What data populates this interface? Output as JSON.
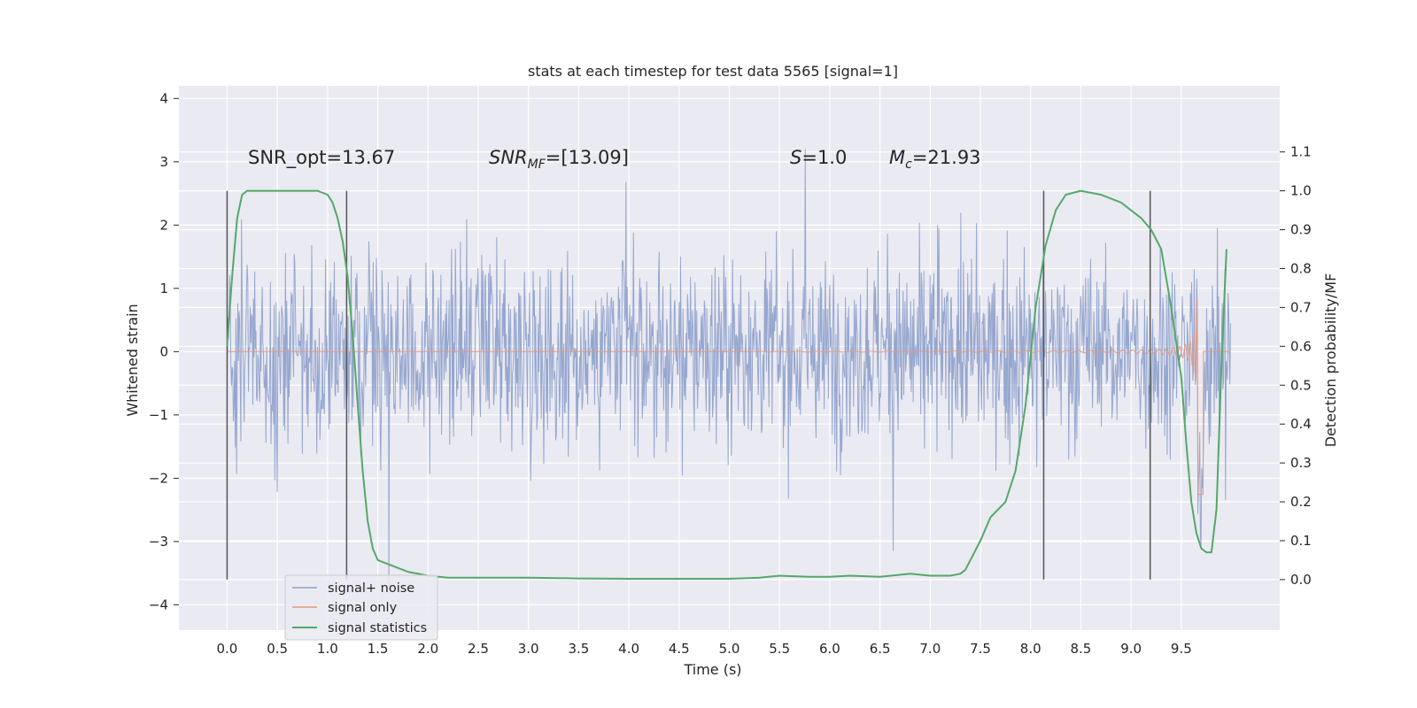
{
  "chart_data": {
    "type": "line",
    "title": "stats at each timestep for test data 5565 [signal=1]",
    "xlabel": "Time (s)",
    "ylabel": "Whitened strain",
    "y2label": "Detection probability/MF",
    "xlim": [
      -0.48,
      10.48
    ],
    "ylim": [
      -4.4,
      4.2
    ],
    "y2lim": [
      -0.13,
      1.27
    ],
    "xticks": [
      "0.0",
      "0.5",
      "1.0",
      "1.5",
      "2.0",
      "2.5",
      "3.0",
      "3.5",
      "4.0",
      "4.5",
      "5.0",
      "5.5",
      "6.0",
      "6.5",
      "7.0",
      "7.5",
      "8.0",
      "8.5",
      "9.0",
      "9.5"
    ],
    "yticks": [
      "4",
      "3",
      "2",
      "1",
      "0",
      "−1",
      "−2",
      "−3",
      "−4"
    ],
    "y2ticks": [
      "0.0",
      "0.1",
      "0.2",
      "0.3",
      "0.4",
      "0.5",
      "0.6",
      "0.7",
      "0.8",
      "0.9",
      "1.0",
      "1.1"
    ],
    "grid": true,
    "legend": {
      "position": "lower-left",
      "entries": [
        {
          "name": "signal+ noise",
          "color": "#8da0cb"
        },
        {
          "name": "signal only",
          "color": "#e5977b"
        },
        {
          "name": "signal statistics",
          "color": "#55a868"
        }
      ]
    },
    "annotations": {
      "snr_opt": "SNR_opt=13.67",
      "snr_mf_italic": "SNR",
      "snr_mf_sub": "MF",
      "snr_mf_rest": "=[13.09]",
      "s_italic": "S",
      "s_rest": "=1.0",
      "mc_italic": "M",
      "mc_sub": "c",
      "mc_rest": "=21.93"
    },
    "vertical_markers_s": [
      0.0,
      1.19,
      8.13,
      9.19
    ],
    "noise_envelope": {
      "x_range": [
        0.0,
        9.99
      ],
      "typical_amplitude": 1.15,
      "max_peak": 3.85
    },
    "signal_only": {
      "x_range": [
        0.0,
        9.99
      ],
      "chirp_start_s": 5.3,
      "merger_s": 9.67,
      "peak_amplitude": 2.35
    },
    "statistics": {
      "x": [
        0.0,
        0.05,
        0.1,
        0.15,
        0.2,
        0.3,
        0.5,
        0.7,
        0.9,
        1.0,
        1.05,
        1.1,
        1.15,
        1.2,
        1.25,
        1.3,
        1.35,
        1.4,
        1.45,
        1.5,
        1.6,
        1.8,
        2.0,
        2.2,
        2.5,
        3.0,
        3.5,
        4.0,
        4.5,
        5.0,
        5.3,
        5.5,
        5.8,
        6.0,
        6.2,
        6.5,
        6.8,
        7.0,
        7.2,
        7.3,
        7.35,
        7.4,
        7.5,
        7.6,
        7.75,
        7.85,
        7.95,
        8.05,
        8.15,
        8.25,
        8.35,
        8.5,
        8.7,
        8.9,
        9.1,
        9.2,
        9.3,
        9.4,
        9.5,
        9.55,
        9.6,
        9.65,
        9.7,
        9.75,
        9.8,
        9.85,
        9.9,
        9.95
      ],
      "y": [
        0.6,
        0.78,
        0.93,
        0.99,
        1.0,
        1.0,
        1.0,
        1.0,
        1.0,
        0.99,
        0.97,
        0.93,
        0.87,
        0.78,
        0.63,
        0.45,
        0.28,
        0.15,
        0.08,
        0.05,
        0.04,
        0.02,
        0.01,
        0.005,
        0.005,
        0.005,
        0.003,
        0.002,
        0.002,
        0.002,
        0.005,
        0.01,
        0.007,
        0.007,
        0.01,
        0.007,
        0.015,
        0.01,
        0.01,
        0.015,
        0.025,
        0.05,
        0.1,
        0.16,
        0.2,
        0.28,
        0.45,
        0.7,
        0.86,
        0.95,
        0.99,
        1.0,
        0.99,
        0.97,
        0.93,
        0.9,
        0.85,
        0.7,
        0.52,
        0.35,
        0.2,
        0.12,
        0.08,
        0.07,
        0.07,
        0.18,
        0.55,
        0.85
      ]
    },
    "colors": {
      "background": "#eaeaf2",
      "grid": "#ffffff",
      "noise": "#8da0cb",
      "signal": "#e5977b",
      "stats": "#55a868",
      "markers": "#555555"
    }
  }
}
